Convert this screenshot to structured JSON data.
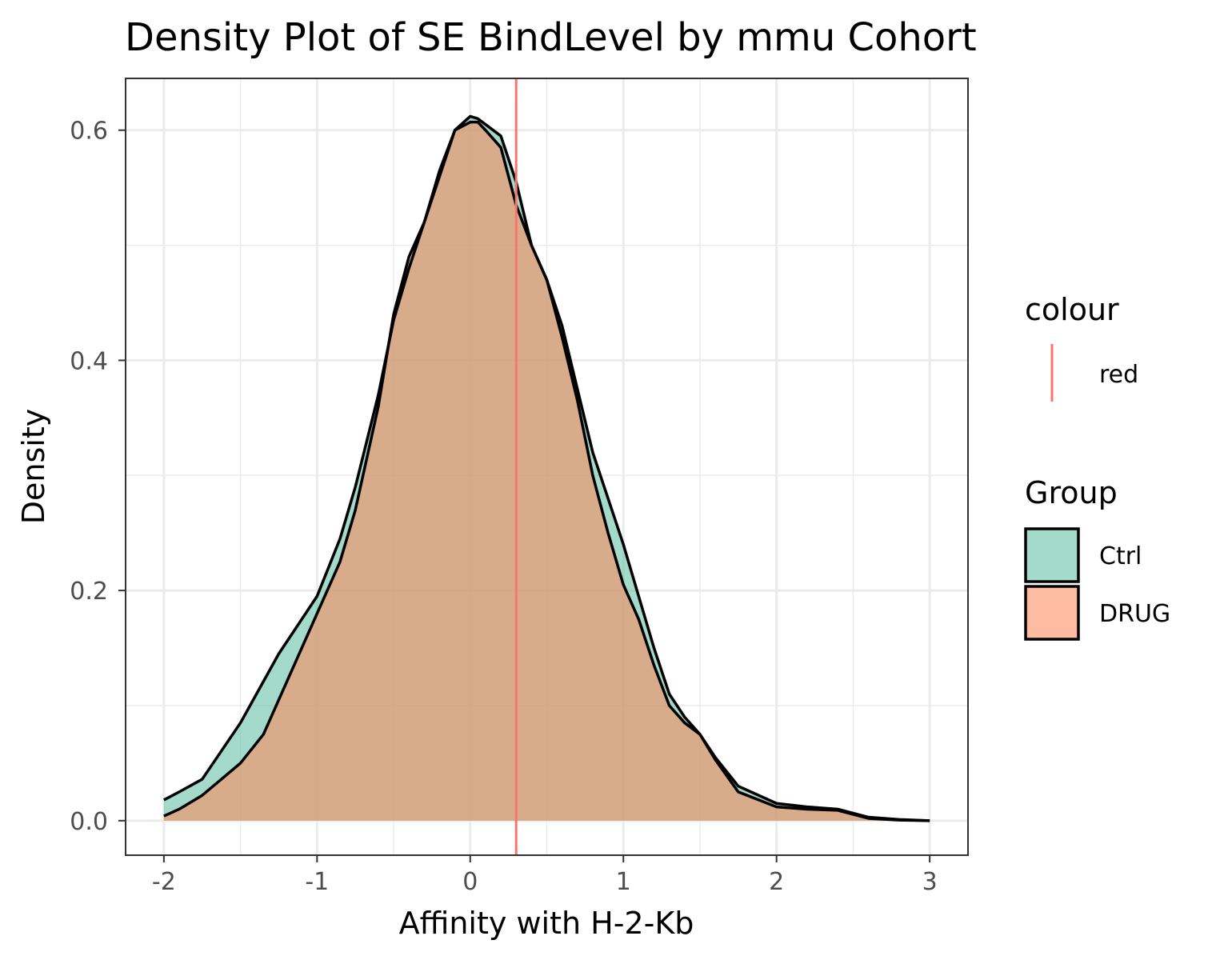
{
  "chart_data": {
    "type": "area",
    "subtype": "density",
    "title": "Density Plot of SE BindLevel by mmu Cohort",
    "xlabel": "Affinity with H-2-Kb",
    "ylabel": "Density",
    "xlim": [
      -2.25,
      3.25
    ],
    "ylim": [
      -0.03,
      0.645
    ],
    "x_ticks": [
      -2,
      -1,
      0,
      1,
      2,
      3
    ],
    "x_tick_labels": [
      "-2",
      "-1",
      "0",
      "1",
      "2",
      "3"
    ],
    "y_ticks": [
      0.0,
      0.2,
      0.4,
      0.6
    ],
    "y_tick_labels": [
      "0.0",
      "0.2",
      "0.4",
      "0.6"
    ],
    "grid": true,
    "legend_position": "right",
    "vline": {
      "x": 0.3,
      "color": "#F8766D",
      "legend_title": "colour",
      "legend_label": "red"
    },
    "legend": {
      "colour_title": "colour",
      "group_title": "Group"
    },
    "series": [
      {
        "name": "Ctrl",
        "fill": "#66C2A5",
        "x": [
          -2,
          -1.9,
          -1.75,
          -1.5,
          -1.25,
          -1.0,
          -0.85,
          -0.75,
          -0.6,
          -0.5,
          -0.4,
          -0.3,
          -0.2,
          -0.1,
          0.0,
          0.05,
          0.1,
          0.2,
          0.3,
          0.4,
          0.5,
          0.6,
          0.7,
          0.8,
          0.9,
          1.0,
          1.1,
          1.2,
          1.3,
          1.4,
          1.5,
          1.6,
          1.75,
          2.0,
          2.2,
          2.4,
          2.6,
          2.8,
          3.0
        ],
        "y": [
          0.018,
          0.025,
          0.036,
          0.085,
          0.145,
          0.195,
          0.245,
          0.29,
          0.37,
          0.435,
          0.48,
          0.52,
          0.565,
          0.6,
          0.612,
          0.61,
          0.605,
          0.595,
          0.555,
          0.5,
          0.47,
          0.43,
          0.375,
          0.32,
          0.28,
          0.24,
          0.195,
          0.15,
          0.11,
          0.09,
          0.075,
          0.055,
          0.03,
          0.015,
          0.012,
          0.01,
          0.003,
          0.001,
          0.0
        ]
      },
      {
        "name": "DRUG",
        "fill": "#FC8D62",
        "x": [
          -2,
          -1.9,
          -1.75,
          -1.5,
          -1.35,
          -1.2,
          -1.0,
          -0.85,
          -0.75,
          -0.6,
          -0.5,
          -0.4,
          -0.3,
          -0.2,
          -0.1,
          0.0,
          0.05,
          0.1,
          0.2,
          0.3,
          0.4,
          0.5,
          0.6,
          0.7,
          0.8,
          0.9,
          1.0,
          1.1,
          1.2,
          1.3,
          1.4,
          1.5,
          1.6,
          1.75,
          2.0,
          2.2,
          2.4,
          2.6,
          2.8,
          3.0
        ],
        "y": [
          0.004,
          0.01,
          0.022,
          0.05,
          0.075,
          0.12,
          0.18,
          0.225,
          0.27,
          0.36,
          0.44,
          0.49,
          0.52,
          0.56,
          0.6,
          0.607,
          0.607,
          0.6,
          0.585,
          0.535,
          0.5,
          0.47,
          0.42,
          0.365,
          0.3,
          0.25,
          0.205,
          0.175,
          0.135,
          0.1,
          0.085,
          0.075,
          0.053,
          0.025,
          0.012,
          0.01,
          0.009,
          0.002,
          0.0005,
          0.0
        ]
      }
    ]
  }
}
